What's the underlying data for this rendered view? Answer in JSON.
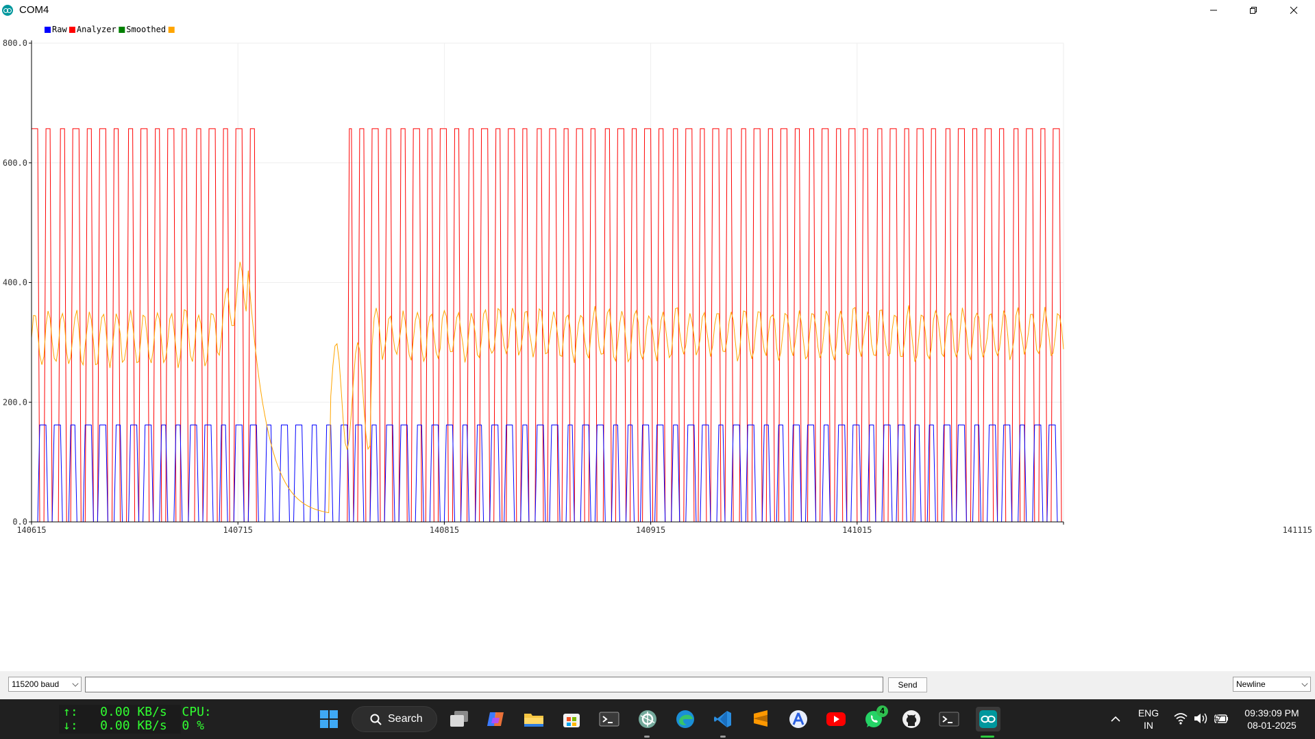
{
  "window": {
    "title": "COM4",
    "icon": "arduino-icon",
    "controls": [
      "minimize-icon",
      "maximize-icon",
      "close-icon"
    ]
  },
  "chart_data": {
    "type": "line",
    "legend": {
      "placement": "top-left",
      "items": [
        {
          "label": "Raw",
          "color": "#0000ff"
        },
        {
          "label": "Analyzer",
          "color": "#ff0000"
        },
        {
          "label": "Smoothed",
          "color": "#008000"
        },
        {
          "label": "",
          "color": "#ffa500"
        }
      ]
    },
    "y_ticks": [
      "800.0",
      "600.0",
      "400.0",
      "200.0",
      "0.0"
    ],
    "x_ticks": [
      "140615",
      "140715",
      "140815",
      "140915",
      "141015",
      "141115"
    ],
    "xlim": [
      140615,
      141115
    ],
    "ylim": [
      0,
      800
    ],
    "grid": true,
    "series": [
      {
        "color": "#ff0000",
        "low": 0,
        "high": 657,
        "period_samples": 6.6,
        "gap_x": [
          140727,
          140768
        ]
      },
      {
        "color": "#0000ff",
        "low": 0,
        "high": 162,
        "period_samples": 7.3
      },
      {
        "color": "#ffa500",
        "min": 10,
        "max": 450,
        "typical_range": [
          230,
          380
        ]
      }
    ]
  },
  "controls": {
    "baud": "115200 baud",
    "input_value": "",
    "send_label": "Send",
    "line_ending": "Newline"
  },
  "taskbar": {
    "net_up": "↑:   0.00 KB/s  CPU:",
    "net_down": "↓:   0.00 KB/s  0 %",
    "search_label": "Search",
    "whatsapp_badge": "4",
    "lang_line1": "ENG",
    "lang_line2": "IN",
    "time": "09:39:09 PM",
    "date": "08-01-2025",
    "icons": [
      "windows-start-icon",
      "search-icon",
      "task-view-icon",
      "copilot-icon",
      "file-explorer-icon",
      "store-icon",
      "terminal-icon",
      "chatgpt-icon",
      "edge-icon",
      "vscode-icon",
      "sublime-icon",
      "app-store-icon",
      "youtube-icon",
      "whatsapp-icon",
      "github-icon",
      "powershell-icon",
      "arduino-icon"
    ]
  }
}
